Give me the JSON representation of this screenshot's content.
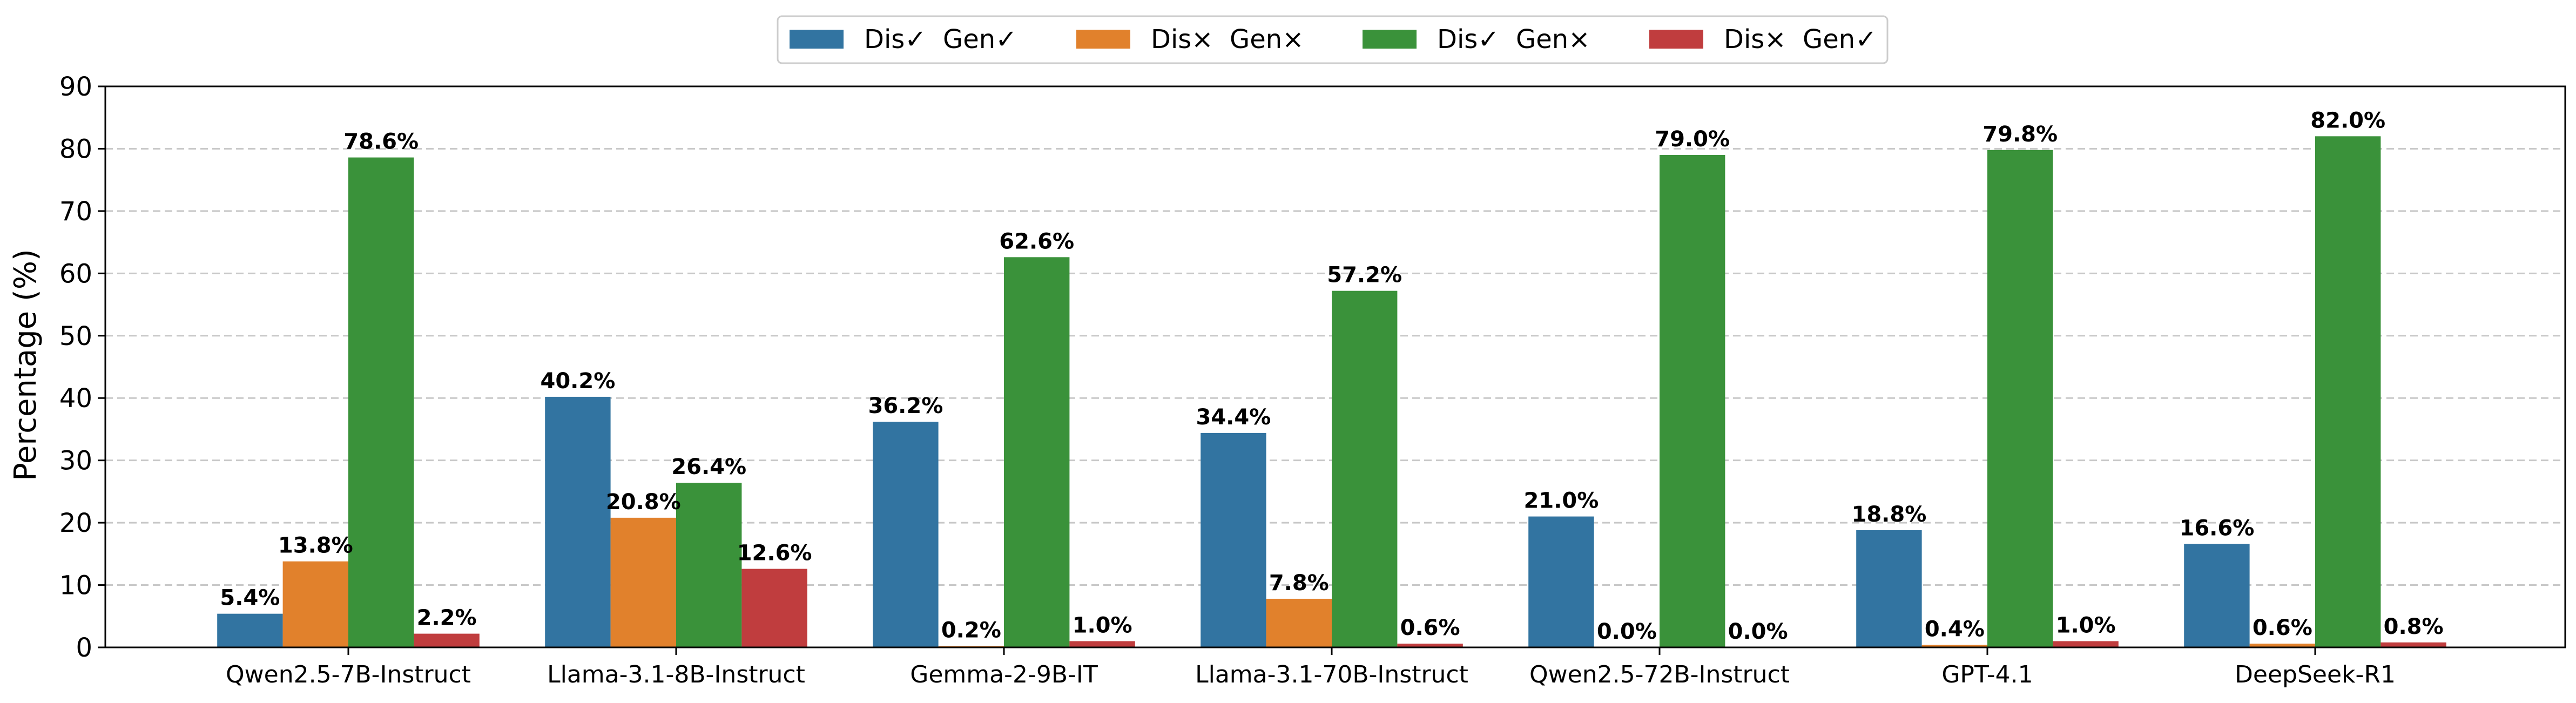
{
  "chart_data": {
    "type": "bar",
    "categories": [
      "Qwen2.5-7B-Instruct",
      "Llama-3.1-8B-Instruct",
      "Gemma-2-9B-IT",
      "Llama-3.1-70B-Instruct",
      "Qwen2.5-72B-Instruct",
      "GPT-4.1",
      "DeepSeek-R1"
    ],
    "series": [
      {
        "name": "Dis✓  Gen✓",
        "color": "#3274a1",
        "values": [
          5.4,
          40.2,
          36.2,
          34.4,
          21.0,
          18.8,
          16.6
        ],
        "labels": [
          "5.4%",
          "40.2%",
          "36.2%",
          "34.4%",
          "21.0%",
          "18.8%",
          "16.6%"
        ]
      },
      {
        "name": "Dis×  Gen×",
        "color": "#e1812c",
        "values": [
          13.8,
          20.8,
          0.2,
          7.8,
          0.0,
          0.4,
          0.6
        ],
        "labels": [
          "13.8%",
          "20.8%",
          "0.2%",
          "7.8%",
          "0.0%",
          "0.4%",
          "0.6%"
        ]
      },
      {
        "name": "Dis✓  Gen×",
        "color": "#3a923a",
        "values": [
          78.6,
          26.4,
          62.6,
          57.2,
          79.0,
          79.8,
          82.0
        ],
        "labels": [
          "78.6%",
          "26.4%",
          "62.6%",
          "57.2%",
          "79.0%",
          "79.8%",
          "82.0%"
        ]
      },
      {
        "name": "Dis×  Gen✓",
        "color": "#c03d3e",
        "values": [
          2.2,
          12.6,
          1.0,
          0.6,
          0.0,
          1.0,
          0.8
        ],
        "labels": [
          "2.2%",
          "12.6%",
          "1.0%",
          "0.6%",
          "0.0%",
          "1.0%",
          "0.8%"
        ]
      }
    ],
    "ylabel": "Percentage (%)",
    "xlabel": "",
    "ylim": [
      0,
      90
    ],
    "yticks": [
      "0",
      "10",
      "20",
      "30",
      "40",
      "50",
      "60",
      "70",
      "80",
      "90"
    ],
    "grid": "y-dashed",
    "legend": "top-center"
  }
}
